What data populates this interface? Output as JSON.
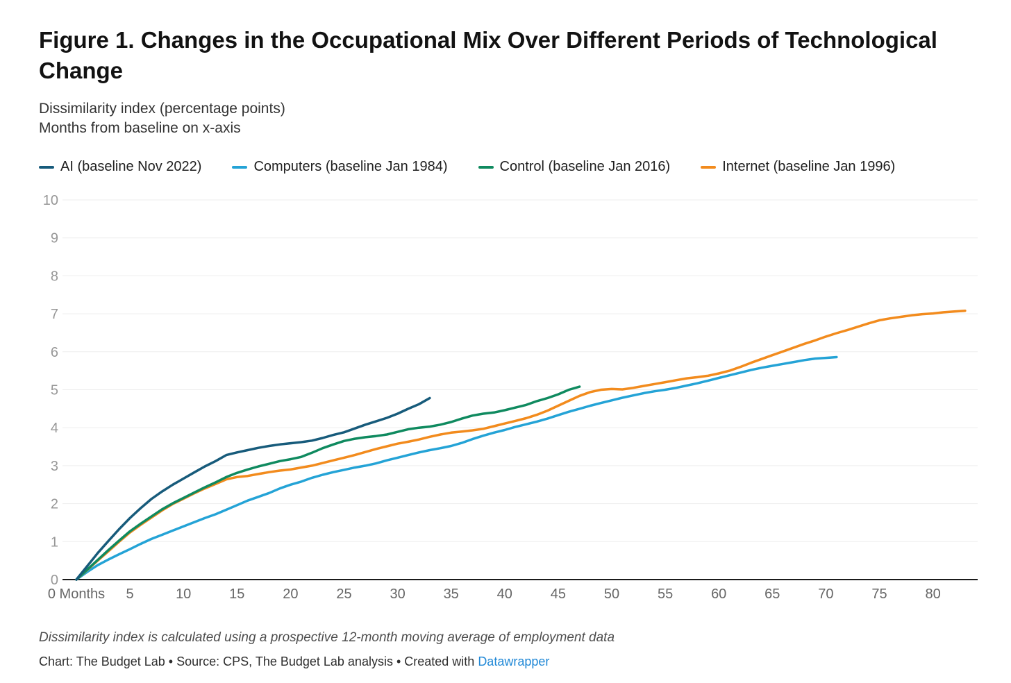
{
  "header": {
    "title": "Figure 1. Changes in the Occupational Mix Over Different Periods of Technological Change",
    "subtitle_line1": "Dissimilarity index (percentage points)",
    "subtitle_line2": "Months from baseline on x-axis"
  },
  "legend": [
    {
      "label": "AI (baseline Nov 2022)",
      "color": "#175b7b"
    },
    {
      "label": "Computers (baseline Jan 1984)",
      "color": "#24a3d6"
    },
    {
      "label": "Control (baseline Jan 2016)",
      "color": "#0f8a5f"
    },
    {
      "label": "Internet (baseline Jan 1996)",
      "color": "#f28b1d"
    }
  ],
  "chart_data": {
    "type": "line",
    "title": "Figure 1. Changes in the Occupational Mix Over Different Periods of Technological Change",
    "xlabel": "Months from baseline",
    "ylabel": "Dissimilarity index (percentage points)",
    "xlim": [
      0,
      84.5
    ],
    "ylim": [
      0,
      10
    ],
    "y_ticks": [
      0,
      1,
      2,
      3,
      4,
      5,
      6,
      7,
      8,
      9,
      10
    ],
    "x_ticks": [
      0,
      5,
      10,
      15,
      20,
      25,
      30,
      35,
      40,
      45,
      50,
      55,
      60,
      65,
      70,
      75,
      80
    ],
    "x_tick_labels": [
      "0 Months",
      "5",
      "10",
      "15",
      "20",
      "25",
      "30",
      "35",
      "40",
      "45",
      "50",
      "55",
      "60",
      "65",
      "70",
      "75",
      "80"
    ],
    "grid": "horizontal",
    "legend_position": "top",
    "series": [
      {
        "name": "Computers (baseline Jan 1984)",
        "color": "#24a3d6",
        "points": [
          [
            0,
            0
          ],
          [
            1,
            0.2
          ],
          [
            2,
            0.38
          ],
          [
            3,
            0.53
          ],
          [
            4,
            0.67
          ],
          [
            5,
            0.8
          ],
          [
            6,
            0.94
          ],
          [
            7,
            1.07
          ],
          [
            8,
            1.18
          ],
          [
            9,
            1.29
          ],
          [
            10,
            1.4
          ],
          [
            11,
            1.51
          ],
          [
            12,
            1.62
          ],
          [
            13,
            1.72
          ],
          [
            14,
            1.84
          ],
          [
            15,
            1.96
          ],
          [
            16,
            2.08
          ],
          [
            17,
            2.18
          ],
          [
            18,
            2.28
          ],
          [
            19,
            2.4
          ],
          [
            20,
            2.5
          ],
          [
            21,
            2.58
          ],
          [
            22,
            2.68
          ],
          [
            23,
            2.76
          ],
          [
            24,
            2.83
          ],
          [
            25,
            2.89
          ],
          [
            26,
            2.95
          ],
          [
            27,
            3.0
          ],
          [
            28,
            3.06
          ],
          [
            29,
            3.14
          ],
          [
            30,
            3.21
          ],
          [
            31,
            3.28
          ],
          [
            32,
            3.35
          ],
          [
            33,
            3.41
          ],
          [
            34,
            3.46
          ],
          [
            35,
            3.52
          ],
          [
            36,
            3.6
          ],
          [
            37,
            3.7
          ],
          [
            38,
            3.79
          ],
          [
            39,
            3.87
          ],
          [
            40,
            3.94
          ],
          [
            41,
            4.02
          ],
          [
            42,
            4.09
          ],
          [
            43,
            4.16
          ],
          [
            44,
            4.24
          ],
          [
            45,
            4.33
          ],
          [
            46,
            4.42
          ],
          [
            47,
            4.5
          ],
          [
            48,
            4.58
          ],
          [
            49,
            4.65
          ],
          [
            50,
            4.72
          ],
          [
            51,
            4.79
          ],
          [
            52,
            4.85
          ],
          [
            53,
            4.91
          ],
          [
            54,
            4.96
          ],
          [
            55,
            5.0
          ],
          [
            56,
            5.05
          ],
          [
            57,
            5.11
          ],
          [
            58,
            5.17
          ],
          [
            59,
            5.24
          ],
          [
            60,
            5.31
          ],
          [
            61,
            5.38
          ],
          [
            62,
            5.45
          ],
          [
            63,
            5.52
          ],
          [
            64,
            5.58
          ],
          [
            65,
            5.63
          ],
          [
            66,
            5.68
          ],
          [
            67,
            5.73
          ],
          [
            68,
            5.78
          ],
          [
            69,
            5.82
          ],
          [
            70,
            5.84
          ],
          [
            71,
            5.86
          ]
        ]
      },
      {
        "name": "Internet (baseline Jan 1996)",
        "color": "#f28b1d",
        "points": [
          [
            0,
            0
          ],
          [
            1,
            0.25
          ],
          [
            2,
            0.5
          ],
          [
            3,
            0.75
          ],
          [
            4,
            1.0
          ],
          [
            5,
            1.24
          ],
          [
            6,
            1.44
          ],
          [
            7,
            1.63
          ],
          [
            8,
            1.82
          ],
          [
            9,
            1.99
          ],
          [
            10,
            2.13
          ],
          [
            11,
            2.27
          ],
          [
            12,
            2.4
          ],
          [
            13,
            2.52
          ],
          [
            14,
            2.64
          ],
          [
            15,
            2.7
          ],
          [
            16,
            2.73
          ],
          [
            17,
            2.78
          ],
          [
            18,
            2.83
          ],
          [
            19,
            2.87
          ],
          [
            20,
            2.9
          ],
          [
            21,
            2.95
          ],
          [
            22,
            3.0
          ],
          [
            23,
            3.07
          ],
          [
            24,
            3.14
          ],
          [
            25,
            3.21
          ],
          [
            26,
            3.28
          ],
          [
            27,
            3.36
          ],
          [
            28,
            3.44
          ],
          [
            29,
            3.51
          ],
          [
            30,
            3.58
          ],
          [
            31,
            3.63
          ],
          [
            32,
            3.69
          ],
          [
            33,
            3.76
          ],
          [
            34,
            3.82
          ],
          [
            35,
            3.87
          ],
          [
            36,
            3.9
          ],
          [
            37,
            3.93
          ],
          [
            38,
            3.97
          ],
          [
            39,
            4.04
          ],
          [
            40,
            4.11
          ],
          [
            41,
            4.18
          ],
          [
            42,
            4.25
          ],
          [
            43,
            4.34
          ],
          [
            44,
            4.45
          ],
          [
            45,
            4.58
          ],
          [
            46,
            4.71
          ],
          [
            47,
            4.84
          ],
          [
            48,
            4.94
          ],
          [
            49,
            5.0
          ],
          [
            50,
            5.02
          ],
          [
            51,
            5.01
          ],
          [
            52,
            5.05
          ],
          [
            53,
            5.1
          ],
          [
            54,
            5.15
          ],
          [
            55,
            5.2
          ],
          [
            56,
            5.25
          ],
          [
            57,
            5.3
          ],
          [
            58,
            5.33
          ],
          [
            59,
            5.37
          ],
          [
            60,
            5.43
          ],
          [
            61,
            5.5
          ],
          [
            62,
            5.6
          ],
          [
            63,
            5.71
          ],
          [
            64,
            5.81
          ],
          [
            65,
            5.91
          ],
          [
            66,
            6.01
          ],
          [
            67,
            6.11
          ],
          [
            68,
            6.21
          ],
          [
            69,
            6.3
          ],
          [
            70,
            6.4
          ],
          [
            71,
            6.49
          ],
          [
            72,
            6.57
          ],
          [
            73,
            6.66
          ],
          [
            74,
            6.75
          ],
          [
            75,
            6.83
          ],
          [
            76,
            6.88
          ],
          [
            77,
            6.92
          ],
          [
            78,
            6.96
          ],
          [
            79,
            6.99
          ],
          [
            80,
            7.01
          ],
          [
            81,
            7.04
          ],
          [
            82,
            7.06
          ],
          [
            83,
            7.08
          ]
        ]
      },
      {
        "name": "Control (baseline Jan 2016)",
        "color": "#0f8a5f",
        "points": [
          [
            0,
            0
          ],
          [
            1,
            0.26
          ],
          [
            2,
            0.52
          ],
          [
            3,
            0.78
          ],
          [
            4,
            1.03
          ],
          [
            5,
            1.27
          ],
          [
            6,
            1.47
          ],
          [
            7,
            1.66
          ],
          [
            8,
            1.85
          ],
          [
            9,
            2.01
          ],
          [
            10,
            2.15
          ],
          [
            11,
            2.29
          ],
          [
            12,
            2.43
          ],
          [
            13,
            2.56
          ],
          [
            14,
            2.7
          ],
          [
            15,
            2.81
          ],
          [
            16,
            2.9
          ],
          [
            17,
            2.98
          ],
          [
            18,
            3.05
          ],
          [
            19,
            3.12
          ],
          [
            20,
            3.17
          ],
          [
            21,
            3.23
          ],
          [
            22,
            3.34
          ],
          [
            23,
            3.46
          ],
          [
            24,
            3.56
          ],
          [
            25,
            3.65
          ],
          [
            26,
            3.71
          ],
          [
            27,
            3.75
          ],
          [
            28,
            3.78
          ],
          [
            29,
            3.82
          ],
          [
            30,
            3.89
          ],
          [
            31,
            3.96
          ],
          [
            32,
            4.0
          ],
          [
            33,
            4.03
          ],
          [
            34,
            4.08
          ],
          [
            35,
            4.15
          ],
          [
            36,
            4.24
          ],
          [
            37,
            4.32
          ],
          [
            38,
            4.37
          ],
          [
            39,
            4.4
          ],
          [
            40,
            4.46
          ],
          [
            41,
            4.53
          ],
          [
            42,
            4.6
          ],
          [
            43,
            4.7
          ],
          [
            44,
            4.78
          ],
          [
            45,
            4.88
          ],
          [
            46,
            5.0
          ],
          [
            47,
            5.08
          ]
        ]
      },
      {
        "name": "AI (baseline Nov 2022)",
        "color": "#175b7b",
        "points": [
          [
            0,
            0
          ],
          [
            1,
            0.35
          ],
          [
            2,
            0.7
          ],
          [
            3,
            1.02
          ],
          [
            4,
            1.33
          ],
          [
            5,
            1.62
          ],
          [
            6,
            1.88
          ],
          [
            7,
            2.12
          ],
          [
            8,
            2.32
          ],
          [
            9,
            2.5
          ],
          [
            10,
            2.66
          ],
          [
            11,
            2.82
          ],
          [
            12,
            2.98
          ],
          [
            13,
            3.12
          ],
          [
            14,
            3.28
          ],
          [
            15,
            3.35
          ],
          [
            16,
            3.41
          ],
          [
            17,
            3.47
          ],
          [
            18,
            3.52
          ],
          [
            19,
            3.56
          ],
          [
            20,
            3.59
          ],
          [
            21,
            3.62
          ],
          [
            22,
            3.66
          ],
          [
            23,
            3.73
          ],
          [
            24,
            3.81
          ],
          [
            25,
            3.88
          ],
          [
            26,
            3.98
          ],
          [
            27,
            4.08
          ],
          [
            28,
            4.17
          ],
          [
            29,
            4.26
          ],
          [
            30,
            4.37
          ],
          [
            31,
            4.5
          ],
          [
            32,
            4.62
          ],
          [
            33,
            4.78
          ]
        ]
      }
    ]
  },
  "footer": {
    "footnote": "Dissimilarity index is calculated using a prospective 12-month moving average of employment data",
    "credit_prefix": "Chart: The Budget Lab • Source: CPS, The Budget Lab analysis • Created with ",
    "credit_link": "Datawrapper",
    "credit_link_color": "#1e87d6"
  }
}
